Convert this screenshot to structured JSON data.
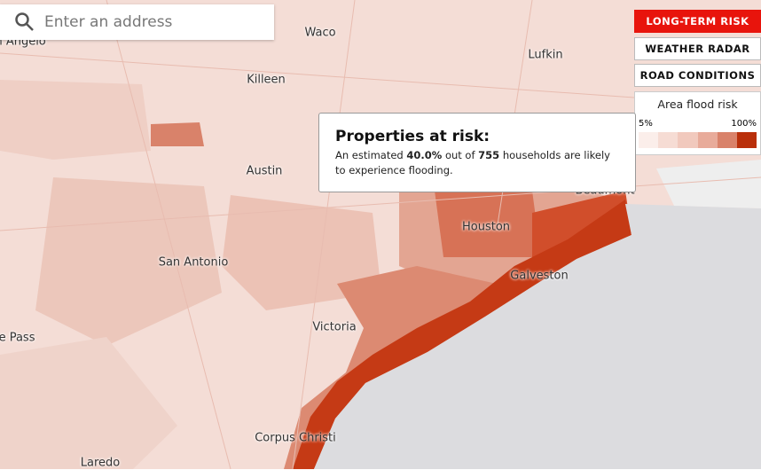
{
  "search": {
    "placeholder": "Enter an address"
  },
  "buttons": [
    "LONG-TERM RISK",
    "WEATHER RADAR",
    "ROAD CONDITIONS"
  ],
  "legend": {
    "title": "Area flood risk",
    "min_label": "5%",
    "max_label": "100%",
    "colors": [
      "#fbeeea",
      "#f6dcd4",
      "#f1c9bd",
      "#e8ab9a",
      "#d9826a",
      "#b92f0a"
    ]
  },
  "tooltip": {
    "title": "Properties at risk:",
    "text_start": "An estimated",
    "percent": "40.0%",
    "text_middle": "out of",
    "households": "755",
    "text_end": "households are likely to experience flooding."
  },
  "places": [
    "San Angelo",
    "Waco",
    "Lufkin",
    "Killeen",
    "Austin",
    "Beaumont",
    "Houston",
    "San Antonio",
    "Galveston",
    "Victoria",
    "Eagle Pass",
    "Corpus Christi",
    "Laredo"
  ]
}
